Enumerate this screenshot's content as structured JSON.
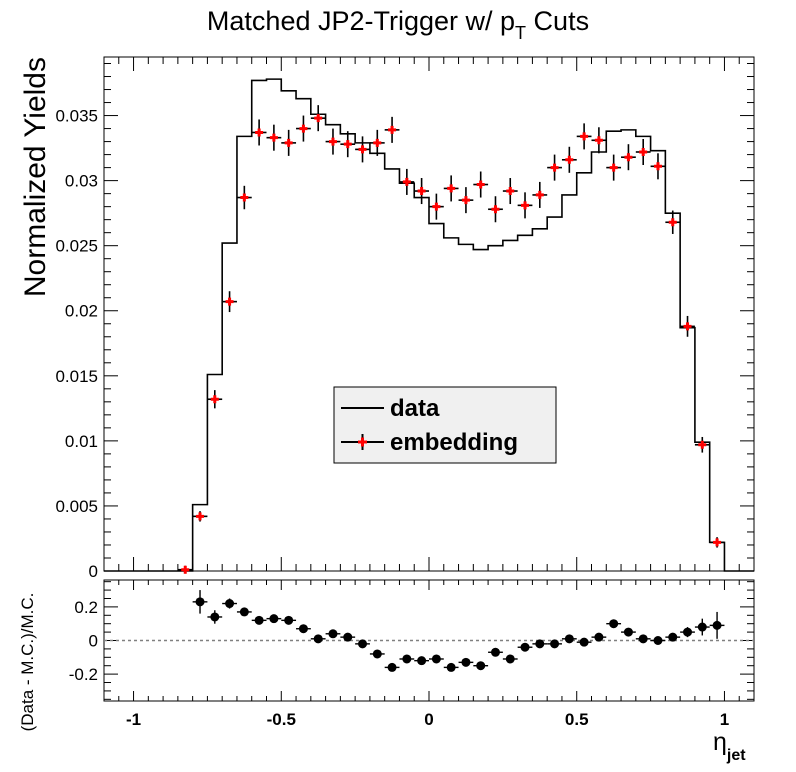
{
  "figure": {
    "title_main": "Matched JP2-Trigger w/ p",
    "title_sub": "T",
    "title_tail": " Cuts"
  },
  "chart_data": [
    {
      "type": "line",
      "panel": "top",
      "ylabel": "Normalized Yields",
      "xlim": [
        -1.1,
        1.1
      ],
      "ylim": [
        0,
        0.0395
      ],
      "yticks": [
        0,
        0.005,
        0.01,
        0.015,
        0.02,
        0.025,
        0.03,
        0.035
      ],
      "ytick_labels": [
        "0",
        "0.005",
        "0.01",
        "0.015",
        "0.02",
        "0.025",
        "0.03",
        "0.035"
      ],
      "legend": {
        "position": "center",
        "entries": [
          "data",
          "embedding"
        ]
      },
      "series": [
        {
          "name": "data",
          "style": "histogram-step",
          "color": "#000000",
          "bin_edges": [
            -1.1,
            -1.0,
            -0.9,
            -0.8,
            -0.75,
            -0.7,
            -0.65,
            -0.6,
            -0.55,
            -0.5,
            -0.45,
            -0.4,
            -0.35,
            -0.3,
            -0.25,
            -0.2,
            -0.15,
            -0.1,
            -0.05,
            0.0,
            0.05,
            0.1,
            0.15,
            0.2,
            0.25,
            0.3,
            0.35,
            0.4,
            0.45,
            0.5,
            0.55,
            0.6,
            0.65,
            0.7,
            0.75,
            0.8,
            0.85,
            0.9,
            0.95,
            1.0,
            1.05,
            1.1
          ],
          "values": [
            0,
            0,
            0,
            0.0051,
            0.0151,
            0.0252,
            0.0334,
            0.0377,
            0.0378,
            0.0369,
            0.0363,
            0.0351,
            0.0343,
            0.0336,
            0.0329,
            0.0321,
            0.0309,
            0.0298,
            0.0287,
            0.0267,
            0.0256,
            0.0251,
            0.0247,
            0.025,
            0.0254,
            0.0258,
            0.0263,
            0.0272,
            0.0289,
            0.0306,
            0.0322,
            0.0338,
            0.0339,
            0.0334,
            0.0323,
            0.0275,
            0.0187,
            0.0099,
            0.0022,
            0,
            0
          ]
        },
        {
          "name": "embedding",
          "style": "points-with-errors",
          "color": "#ff0000",
          "x": [
            -0.825,
            -0.775,
            -0.725,
            -0.675,
            -0.625,
            -0.575,
            -0.525,
            -0.475,
            -0.425,
            -0.375,
            -0.325,
            -0.275,
            -0.225,
            -0.175,
            -0.125,
            -0.075,
            -0.025,
            0.025,
            0.075,
            0.125,
            0.175,
            0.225,
            0.275,
            0.325,
            0.375,
            0.425,
            0.475,
            0.525,
            0.575,
            0.625,
            0.675,
            0.725,
            0.775,
            0.825,
            0.875,
            0.925,
            0.975
          ],
          "y": [
            0.0001,
            0.0042,
            0.0132,
            0.0207,
            0.0287,
            0.0337,
            0.0333,
            0.0329,
            0.034,
            0.0348,
            0.033,
            0.0328,
            0.0324,
            0.0329,
            0.0339,
            0.0299,
            0.0292,
            0.028,
            0.0294,
            0.0285,
            0.0297,
            0.0278,
            0.0292,
            0.0281,
            0.0289,
            0.031,
            0.0316,
            0.0334,
            0.0331,
            0.031,
            0.0318,
            0.0322,
            0.0311,
            0.0268,
            0.0188,
            0.0097,
            0.0022
          ],
          "yerr": [
            0.0001,
            0.0002,
            0.0005,
            0.0006,
            0.0007,
            0.0008,
            0.0008,
            0.0008,
            0.0008,
            0.0008,
            0.0008,
            0.0008,
            0.0008,
            0.0008,
            0.0008,
            0.0008,
            0.0008,
            0.0008,
            0.0008,
            0.0008,
            0.0008,
            0.0008,
            0.0008,
            0.0008,
            0.0008,
            0.0008,
            0.0008,
            0.0008,
            0.0008,
            0.0008,
            0.0008,
            0.0008,
            0.0008,
            0.0007,
            0.0006,
            0.0004,
            0.0002
          ]
        }
      ]
    },
    {
      "type": "scatter",
      "panel": "bottom",
      "ylabel": "(Data - M.C.)/M.C.",
      "xlabel_main": "η",
      "xlabel_sub": "jet",
      "xlim": [
        -1.1,
        1.1
      ],
      "ylim": [
        -0.36,
        0.36
      ],
      "yticks": [
        -0.2,
        0,
        0.2
      ],
      "ytick_labels": [
        "-0.2",
        "0",
        "0.2"
      ],
      "xticks": [
        -1,
        -0.5,
        0,
        0.5,
        1
      ],
      "xtick_labels": [
        "-1",
        "-0.5",
        "0",
        "0.5",
        "1"
      ],
      "reference_line": 0,
      "series": [
        {
          "style": "points-with-errors",
          "color": "#000000",
          "x": [
            -0.775,
            -0.725,
            -0.675,
            -0.625,
            -0.575,
            -0.525,
            -0.475,
            -0.425,
            -0.375,
            -0.325,
            -0.275,
            -0.225,
            -0.175,
            -0.125,
            -0.075,
            -0.025,
            0.025,
            0.075,
            0.125,
            0.175,
            0.225,
            0.275,
            0.325,
            0.375,
            0.425,
            0.475,
            0.525,
            0.575,
            0.625,
            0.675,
            0.725,
            0.775,
            0.825,
            0.875,
            0.925,
            0.975
          ],
          "y": [
            0.23,
            0.14,
            0.22,
            0.17,
            0.12,
            0.13,
            0.12,
            0.07,
            0.01,
            0.04,
            0.02,
            -0.02,
            -0.08,
            -0.16,
            -0.11,
            -0.12,
            -0.11,
            -0.16,
            -0.13,
            -0.15,
            -0.07,
            -0.11,
            -0.04,
            -0.02,
            -0.02,
            0.01,
            -0.01,
            0.02,
            0.1,
            0.05,
            0.01,
            0.0,
            0.02,
            0.05,
            0.08,
            0.09
          ],
          "yerr": [
            0.07,
            0.04,
            0.03,
            0.02,
            0.02,
            0.02,
            0.02,
            0.02,
            0.02,
            0.02,
            0.02,
            0.02,
            0.02,
            0.02,
            0.02,
            0.02,
            0.02,
            0.02,
            0.02,
            0.02,
            0.02,
            0.02,
            0.02,
            0.02,
            0.02,
            0.02,
            0.02,
            0.02,
            0.02,
            0.02,
            0.02,
            0.02,
            0.02,
            0.03,
            0.05,
            0.08
          ]
        }
      ]
    }
  ]
}
